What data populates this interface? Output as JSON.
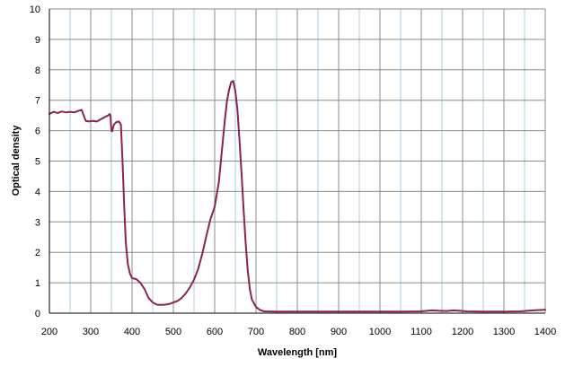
{
  "chart_data": {
    "type": "line",
    "title": "",
    "xlabel": "Wavelength [nm]",
    "ylabel": "Optical density",
    "xlim": [
      200,
      1400
    ],
    "ylim": [
      0,
      10
    ],
    "x_major_ticks": [
      200,
      300,
      400,
      500,
      600,
      700,
      800,
      900,
      1000,
      1100,
      1200,
      1300,
      1400
    ],
    "x_minor_ticks": [
      250,
      350,
      450,
      550,
      650,
      750,
      850,
      950,
      1050,
      1150,
      1250,
      1350
    ],
    "y_ticks": [
      0,
      1,
      2,
      3,
      4,
      5,
      6,
      7,
      8,
      9,
      10
    ],
    "grid": true,
    "legend": "none",
    "colors": {
      "line": "#8B2252",
      "major_grid": "#8c8c8c",
      "minor_grid": "#a9cfe0",
      "axis": "#000000"
    },
    "series": [
      {
        "points": [
          [
            200,
            6.55
          ],
          [
            210,
            6.62
          ],
          [
            220,
            6.58
          ],
          [
            230,
            6.63
          ],
          [
            240,
            6.6
          ],
          [
            250,
            6.62
          ],
          [
            260,
            6.6
          ],
          [
            270,
            6.65
          ],
          [
            278,
            6.68
          ],
          [
            283,
            6.5
          ],
          [
            288,
            6.32
          ],
          [
            295,
            6.3
          ],
          [
            305,
            6.32
          ],
          [
            315,
            6.3
          ],
          [
            325,
            6.38
          ],
          [
            335,
            6.45
          ],
          [
            342,
            6.5
          ],
          [
            346,
            6.55
          ],
          [
            348,
            6.45
          ],
          [
            350,
            6.0
          ],
          [
            352,
            5.98
          ],
          [
            356,
            6.2
          ],
          [
            362,
            6.28
          ],
          [
            368,
            6.3
          ],
          [
            373,
            6.2
          ],
          [
            377,
            5.0
          ],
          [
            381,
            3.5
          ],
          [
            385,
            2.3
          ],
          [
            390,
            1.6
          ],
          [
            395,
            1.3
          ],
          [
            400,
            1.15
          ],
          [
            410,
            1.12
          ],
          [
            420,
            1.0
          ],
          [
            430,
            0.8
          ],
          [
            440,
            0.5
          ],
          [
            450,
            0.35
          ],
          [
            460,
            0.28
          ],
          [
            470,
            0.27
          ],
          [
            480,
            0.28
          ],
          [
            490,
            0.3
          ],
          [
            500,
            0.35
          ],
          [
            510,
            0.4
          ],
          [
            520,
            0.5
          ],
          [
            530,
            0.65
          ],
          [
            540,
            0.85
          ],
          [
            550,
            1.1
          ],
          [
            560,
            1.45
          ],
          [
            570,
            1.95
          ],
          [
            580,
            2.55
          ],
          [
            590,
            3.1
          ],
          [
            600,
            3.5
          ],
          [
            605,
            3.9
          ],
          [
            610,
            4.3
          ],
          [
            615,
            5.0
          ],
          [
            620,
            5.7
          ],
          [
            625,
            6.4
          ],
          [
            630,
            7.0
          ],
          [
            635,
            7.35
          ],
          [
            640,
            7.6
          ],
          [
            645,
            7.63
          ],
          [
            650,
            7.3
          ],
          [
            655,
            6.7
          ],
          [
            660,
            5.7
          ],
          [
            665,
            4.6
          ],
          [
            670,
            3.4
          ],
          [
            675,
            2.3
          ],
          [
            680,
            1.4
          ],
          [
            685,
            0.8
          ],
          [
            690,
            0.45
          ],
          [
            700,
            0.2
          ],
          [
            710,
            0.1
          ],
          [
            720,
            0.06
          ],
          [
            750,
            0.05
          ],
          [
            800,
            0.05
          ],
          [
            900,
            0.05
          ],
          [
            1000,
            0.05
          ],
          [
            1050,
            0.05
          ],
          [
            1100,
            0.06
          ],
          [
            1125,
            0.09
          ],
          [
            1140,
            0.08
          ],
          [
            1160,
            0.07
          ],
          [
            1180,
            0.09
          ],
          [
            1190,
            0.08
          ],
          [
            1210,
            0.06
          ],
          [
            1250,
            0.05
          ],
          [
            1300,
            0.05
          ],
          [
            1340,
            0.06
          ],
          [
            1360,
            0.08
          ],
          [
            1380,
            0.1
          ],
          [
            1400,
            0.11
          ]
        ]
      }
    ]
  }
}
